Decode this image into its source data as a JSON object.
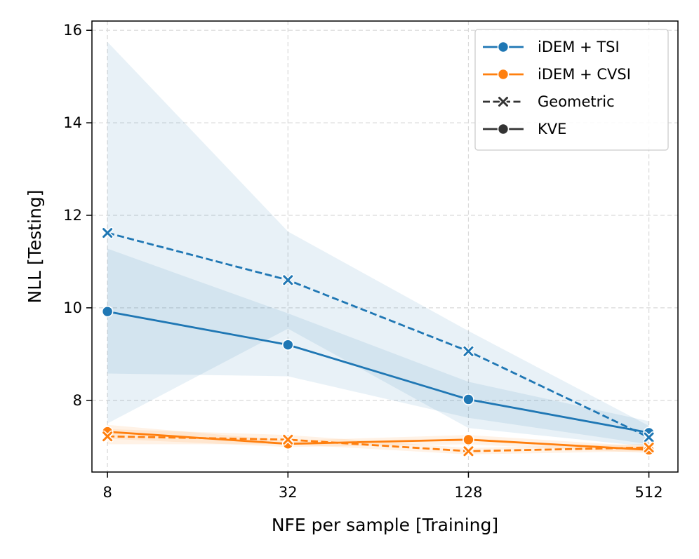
{
  "chart_data": {
    "type": "line",
    "title": "",
    "xlabel": "NFE per sample [Training]",
    "ylabel": "NLL [Testing]",
    "x_scale": "log2",
    "x": [
      8,
      32,
      128,
      512
    ],
    "x_tick_labels": [
      "8",
      "32",
      "128",
      "512"
    ],
    "xlim": [
      7.1,
      640
    ],
    "ylim": [
      6.45,
      16.2
    ],
    "y_ticks": [
      8,
      10,
      12,
      14,
      16
    ],
    "y_tick_labels": [
      "8",
      "10",
      "12",
      "14",
      "16"
    ],
    "grid": true,
    "legend_position": "top-right",
    "legend": [
      {
        "label": "iDEM + TSI",
        "kind": "color",
        "color": "#1f77b4"
      },
      {
        "label": "iDEM + CVSI",
        "kind": "color",
        "color": "#ff7f0e"
      },
      {
        "label": "Geometric",
        "kind": "style",
        "style": "dashed-x",
        "color": "#333333"
      },
      {
        "label": "KVE",
        "kind": "style",
        "style": "solid-o",
        "color": "#333333"
      }
    ],
    "series": [
      {
        "method": "iDEM + TSI",
        "schedule": "KVE",
        "color": "#1f77b4",
        "line": "solid",
        "marker": "o",
        "values": [
          9.92,
          9.2,
          8.02,
          7.3
        ],
        "ci_low": [
          8.58,
          8.52,
          7.62,
          7.05
        ],
        "ci_high": [
          11.28,
          9.88,
          8.4,
          7.55
        ]
      },
      {
        "method": "iDEM + TSI",
        "schedule": "Geometric",
        "color": "#1f77b4",
        "line": "dashed",
        "marker": "x",
        "values": [
          11.62,
          10.6,
          9.06,
          7.2
        ],
        "ci_low": [
          7.5,
          9.55,
          7.4,
          7.0
        ],
        "ci_high": [
          15.75,
          11.65,
          9.5,
          7.45
        ]
      },
      {
        "method": "iDEM + CVSI",
        "schedule": "KVE",
        "color": "#ff7f0e",
        "line": "solid",
        "marker": "o",
        "values": [
          7.32,
          7.06,
          7.15,
          6.93
        ],
        "ci_low": [
          7.17,
          6.99,
          7.05,
          6.86
        ],
        "ci_high": [
          7.47,
          7.13,
          7.25,
          7.0
        ]
      },
      {
        "method": "iDEM + CVSI",
        "schedule": "Geometric",
        "color": "#ff7f0e",
        "line": "dashed",
        "marker": "x",
        "values": [
          7.22,
          7.15,
          6.9,
          6.98
        ],
        "ci_low": [
          7.05,
          7.05,
          6.83,
          6.9
        ],
        "ci_high": [
          7.38,
          7.25,
          6.97,
          7.06
        ]
      }
    ]
  }
}
